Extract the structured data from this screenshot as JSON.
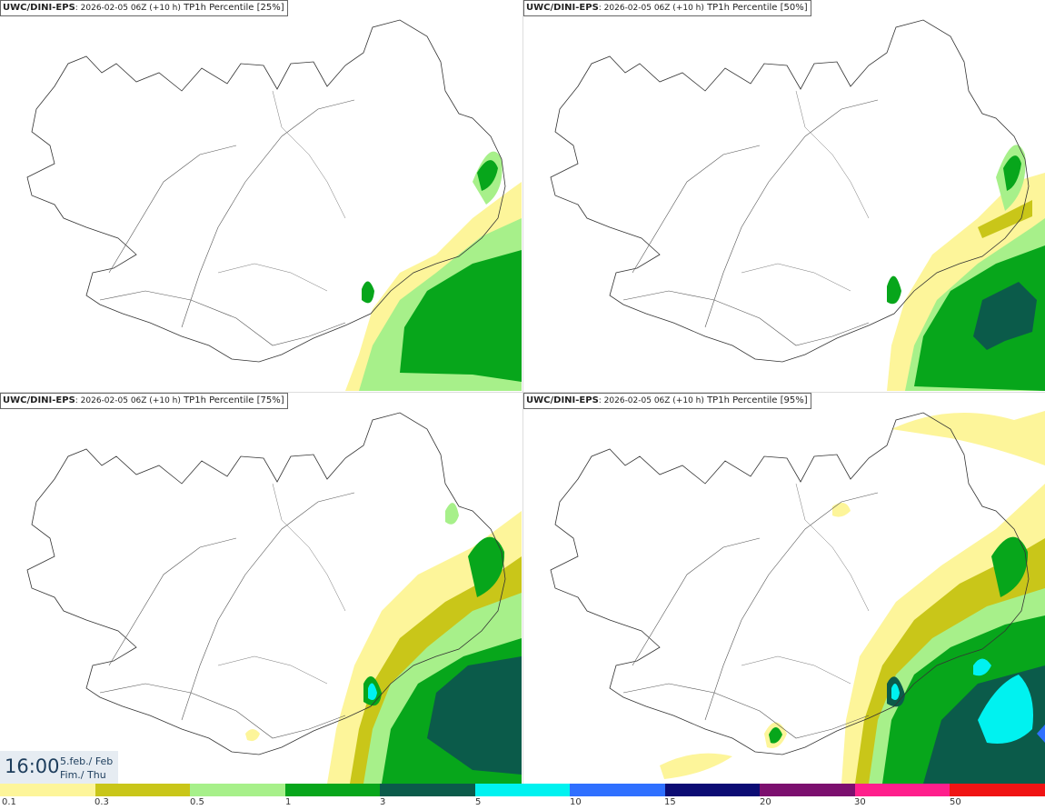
{
  "panels": [
    {
      "model": "UWC/DINI-EPS",
      "run": ": 2026-02-05 06Z (+10 h)",
      "field": " TP1h Percentile [25%]"
    },
    {
      "model": "UWC/DINI-EPS",
      "run": ": 2026-02-05 06Z (+10 h)",
      "field": " TP1h Percentile [50%]"
    },
    {
      "model": "UWC/DINI-EPS",
      "run": ": 2026-02-05 06Z (+10 h)",
      "field": " TP1h Percentile [75%]"
    },
    {
      "model": "UWC/DINI-EPS",
      "run": ": 2026-02-05 06Z (+10 h)",
      "field": " TP1h Percentile [95%]"
    }
  ],
  "valid_time": {
    "time": "16:00",
    "date_line1": "5.feb./ Feb",
    "date_line2": "Fim./ Thu"
  },
  "legend": {
    "colors": [
      "#fdf59a",
      "#c9c619",
      "#a7f08a",
      "#07a61b",
      "#0b5b4a",
      "#00f2f0",
      "#2f70ff",
      "#0c0c74",
      "#7c0f6f",
      "#ff1f8c",
      "#f01414"
    ],
    "labels": [
      "0.1",
      "0.3",
      "0.5",
      "1",
      "3",
      "5",
      "10",
      "15",
      "20",
      "30",
      "50"
    ]
  },
  "map": {
    "region": "Iceland",
    "levels": [
      "0.1",
      "0.3",
      "0.5",
      "1",
      "3",
      "5"
    ]
  }
}
